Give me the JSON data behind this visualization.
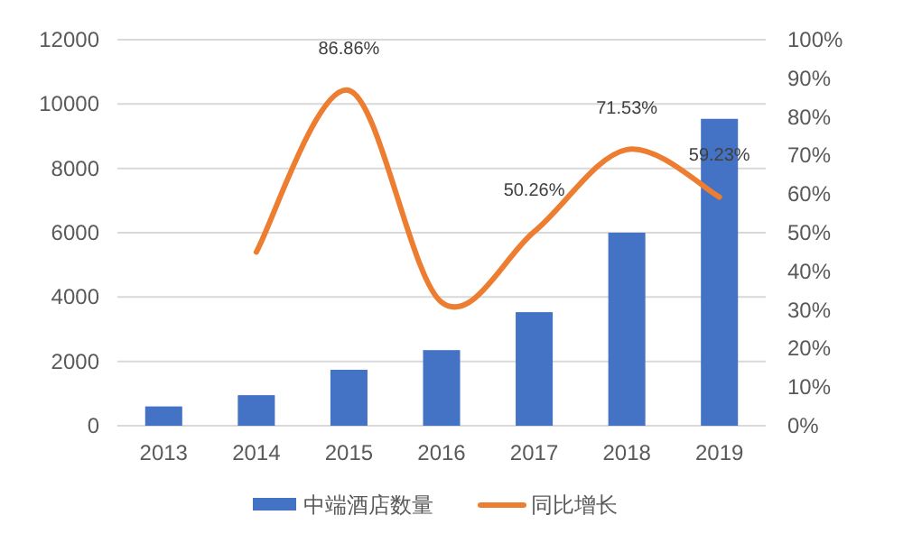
{
  "chart_data": {
    "type": "bar",
    "categories": [
      "2013",
      "2014",
      "2015",
      "2016",
      "2017",
      "2018",
      "2019"
    ],
    "series": [
      {
        "name": "中端酒店数量",
        "color": "#4472c4",
        "values": [
          600,
          950,
          1740,
          2350,
          3530,
          6000,
          9540
        ]
      },
      {
        "name": "同比增长",
        "type": "line",
        "axis": "y2",
        "color": "#ed7d31",
        "values": [
          null,
          45,
          86.86,
          32,
          50.26,
          71.53,
          59.23
        ],
        "value_labels": [
          null,
          null,
          "86.86%",
          null,
          "50.26%",
          "71.53%",
          "59.23%"
        ]
      }
    ],
    "ylim": [
      0,
      12000
    ],
    "yticks": [
      0,
      2000,
      4000,
      6000,
      8000,
      10000,
      12000
    ],
    "y2lim": [
      0,
      100
    ],
    "y2ticks": [
      {
        "value": 0,
        "label": "0%"
      },
      {
        "value": 10,
        "label": "10%"
      },
      {
        "value": 20,
        "label": "20%"
      },
      {
        "value": 30,
        "label": "30%"
      },
      {
        "value": 40,
        "label": "40%"
      },
      {
        "value": 50,
        "label": "50%"
      },
      {
        "value": 60,
        "label": "60%"
      },
      {
        "value": 70,
        "label": "70%"
      },
      {
        "value": 80,
        "label": "80%"
      },
      {
        "value": 90,
        "label": "90%"
      },
      {
        "value": 100,
        "label": "100%"
      }
    ],
    "grid": "y",
    "legend": "bottom"
  }
}
